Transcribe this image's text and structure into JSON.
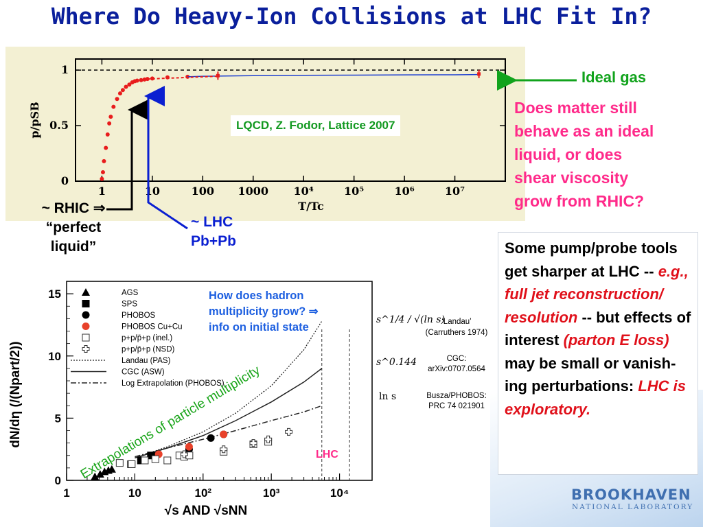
{
  "slide": {
    "title": "Where Do Heavy-Ion Collisions at LHC Fit In?",
    "ideal_gas_label": "Ideal gas",
    "question_lines": [
      "Does matter still",
      "behave as an ideal",
      "liquid, or does",
      "shear viscosity",
      "grow from RHIC?"
    ],
    "rhic_lines": [
      "~ RHIC ⇒",
      "“perfect",
      "liquid”"
    ],
    "lhc_lines": [
      "~ LHC",
      "Pb+Pb"
    ],
    "lqcd_citation": "LQCD, Z. Fodor, Lattice 2007",
    "pump_probe": {
      "part1": "Some pump/probe tools get sharper at LHC -- ",
      "part2_italic": "e.g., full jet reconstruction/ resolution",
      "part3": " -- but effects of interest ",
      "part4_italic": "(parton E loss)",
      "part5": " may be small or vanish-ing perturbations: ",
      "part6_italic": "LHC is exploratory."
    },
    "hadron_question_lines": [
      "How does hadron",
      "multiplicity grow? ⇒",
      "info on initial state"
    ],
    "extrapolation_label": "Extrapolations of particle multiplicity",
    "lhc_marker_label": "LHC",
    "logo_main": "BROOKHAVEN",
    "logo_sub": "NATIONAL LABORATORY",
    "colors": {
      "title": "#0a1f9c",
      "pink": "#ff2a8a",
      "green": "#11a31c",
      "blue": "#0a1fd1",
      "red": "#e0101a"
    }
  },
  "chart_data": [
    {
      "type": "line",
      "xlabel": "T/Tc",
      "ylabel": "p/pSB",
      "xscale": "log",
      "xticks": [
        "1",
        "10",
        "100",
        "1000",
        "10⁴",
        "10⁵",
        "10⁶",
        "10⁷"
      ],
      "yticks": [
        "0",
        "0.5",
        "1"
      ],
      "ylim": [
        0,
        1.1
      ],
      "series": [
        {
          "x": [
            1.0,
            1.05,
            1.1,
            1.2,
            1.3,
            1.4,
            1.5,
            1.7,
            2.0,
            2.3,
            2.6,
            3.0,
            3.5,
            4.0,
            4.5,
            5.0,
            6.0,
            7.0,
            8.0,
            10.0,
            20.0,
            50.0
          ],
          "y": [
            0.02,
            0.08,
            0.18,
            0.3,
            0.42,
            0.52,
            0.58,
            0.67,
            0.74,
            0.79,
            0.82,
            0.85,
            0.87,
            0.89,
            0.9,
            0.905,
            0.91,
            0.915,
            0.92,
            0.925,
            0.935,
            0.94
          ]
        },
        {
          "x": [
            100,
            1000,
            10000,
            100000,
            1000000,
            10000000,
            30000000
          ],
          "y": [
            0.945,
            0.95,
            0.953,
            0.955,
            0.957,
            0.958,
            0.96
          ]
        }
      ],
      "points_with_errors": [
        {
          "x": 200,
          "y": 0.95
        },
        {
          "x": 30000000,
          "y": 0.965
        }
      ],
      "reference_line_y": 1
    },
    {
      "type": "scatter",
      "ylabel": "dN/dη (/(Npart/2))",
      "xlabel": "√s AND √sNN",
      "xscale": "log",
      "xticks": [
        "1",
        "10",
        "10²",
        "10³",
        "10⁴"
      ],
      "yticks": [
        "0",
        "5",
        "10",
        "15"
      ],
      "ylim": [
        0,
        16
      ],
      "legend": [
        "AGS",
        "SPS",
        "PHOBOS",
        "PHOBOS Cu+Cu",
        "p+p/p̄+p (inel.)",
        "p+p/p̄+p (NSD)",
        "Landau (PAS)",
        "CGC (ASW)",
        "Log Extrapolation (PHOBOS)"
      ],
      "formula_labels": [
        "s^1/4 / √(ln s)",
        "s^0.144",
        "ln s"
      ],
      "model_notes": [
        "‘Landau’",
        "(Carruthers 1974)",
        "CGC:",
        "arXiv:0707.0564",
        "Busza/PHOBOS:",
        "PRC 74 021901"
      ],
      "series": [
        {
          "name": "AGS",
          "x": [
            2.6,
            3.1,
            3.6,
            4.1,
            4.6
          ],
          "y": [
            0.3,
            0.5,
            0.7,
            0.8,
            0.9
          ]
        },
        {
          "name": "SPS",
          "x": [
            8.8,
            12.3,
            17.2
          ],
          "y": [
            1.3,
            1.6,
            2.0
          ]
        },
        {
          "name": "PHOBOS",
          "x": [
            19.6,
            62.4,
            130,
            200
          ],
          "y": [
            2.0,
            2.5,
            3.4,
            3.7
          ]
        },
        {
          "name": "PHOBOS Cu+Cu",
          "x": [
            22.4,
            62.4,
            200
          ],
          "y": [
            2.1,
            2.7,
            3.7
          ]
        },
        {
          "name": "p+p/p̄+p (inel.)",
          "x": [
            6,
            9,
            14,
            20,
            30,
            45,
            53,
            63,
            200,
            546,
            900
          ],
          "y": [
            1.4,
            1.3,
            1.6,
            1.7,
            1.6,
            2.0,
            1.9,
            2.0,
            2.3,
            2.9,
            3.1
          ]
        },
        {
          "name": "p+p/p̄+p (NSD)",
          "x": [
            53,
            200,
            546,
            900,
            1800
          ],
          "y": [
            2.1,
            2.5,
            3.0,
            3.3,
            3.9
          ]
        },
        {
          "name": "Landau (PAS)",
          "x": [
            10,
            30,
            100,
            300,
            1000,
            3000,
            5500
          ],
          "y": [
            1.8,
            2.7,
            3.9,
            5.4,
            7.6,
            10.5,
            12.8
          ]
        },
        {
          "name": "CGC (ASW)",
          "x": [
            10,
            30,
            100,
            300,
            1000,
            3000,
            5500
          ],
          "y": [
            1.8,
            2.6,
            3.6,
            4.8,
            6.3,
            7.9,
            9.0
          ]
        },
        {
          "name": "Log Extrapolation (PHOBOS)",
          "x": [
            10,
            30,
            100,
            300,
            1000,
            3000,
            5500
          ],
          "y": [
            1.9,
            2.6,
            3.3,
            4.0,
            4.8,
            5.5,
            6.0
          ]
        }
      ]
    }
  ]
}
